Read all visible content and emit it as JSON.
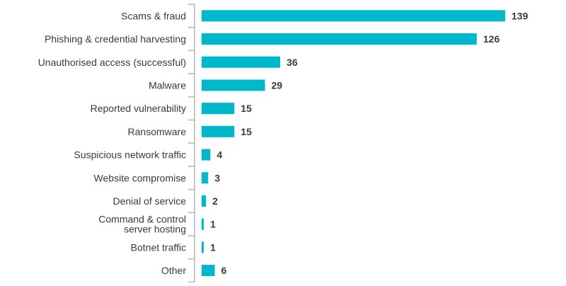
{
  "chart_data": {
    "type": "bar",
    "orientation": "horizontal",
    "title": "",
    "xlabel": "",
    "ylabel": "",
    "bar_color": "#00b8cc",
    "axis_color": "#b5b5b5",
    "xlim": [
      0,
      139
    ],
    "categories": [
      [
        "Scams & fraud"
      ],
      [
        "Phishing & credential harvesting"
      ],
      [
        "Unauthorised access (successful)"
      ],
      [
        "Malware"
      ],
      [
        "Reported vulnerability"
      ],
      [
        "Ransomware"
      ],
      [
        "Suspicious network traffic"
      ],
      [
        "Website compromise"
      ],
      [
        "Denial of service"
      ],
      [
        "Command & control",
        "server hosting"
      ],
      [
        "Botnet traffic"
      ],
      [
        "Other"
      ]
    ],
    "values": [
      139,
      126,
      36,
      29,
      15,
      15,
      4,
      3,
      2,
      1,
      1,
      6
    ]
  }
}
